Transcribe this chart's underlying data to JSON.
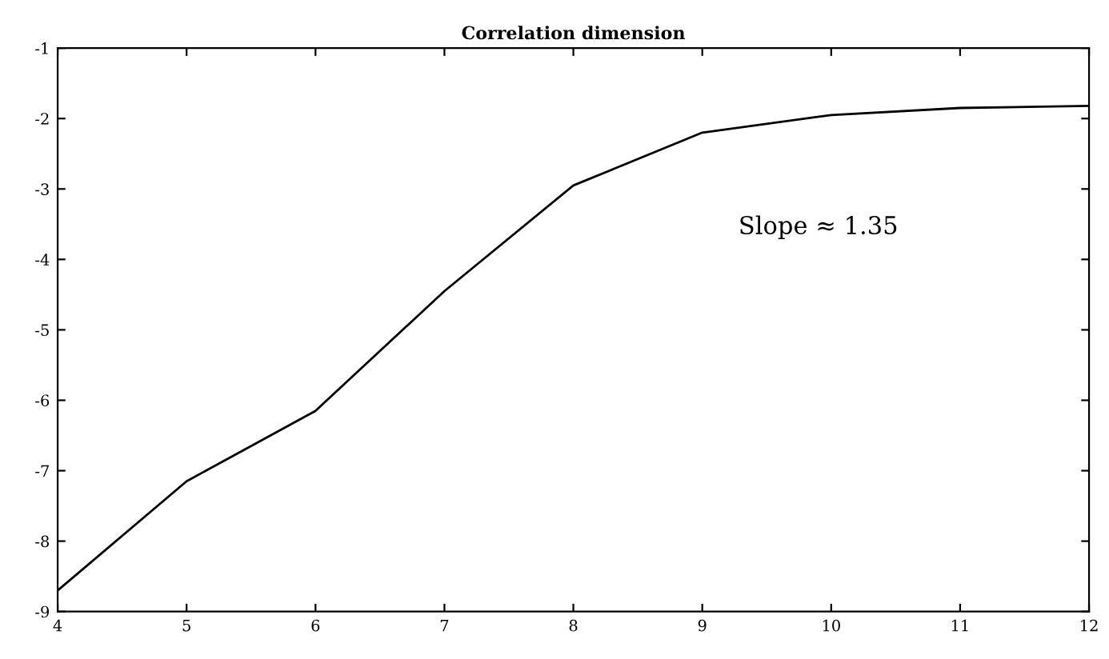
{
  "chart_data": {
    "type": "line",
    "title": "Correlation dimension",
    "x": [
      4,
      5,
      6,
      7,
      8,
      9,
      10,
      11,
      12
    ],
    "values": [
      -8.7,
      -7.15,
      -6.15,
      -4.45,
      -2.95,
      -2.2,
      -1.95,
      -1.85,
      -1.82
    ],
    "color": "#000000",
    "xlim": [
      4,
      12
    ],
    "xticks": [
      4,
      5,
      6,
      7,
      8,
      9,
      10,
      11,
      12
    ],
    "ylim": [
      -9,
      -1
    ],
    "yticks": [
      -9,
      -8,
      -7,
      -6,
      -5,
      -4,
      -3,
      -2,
      -1
    ],
    "annotations": [
      "Slope ≈ 1.35"
    ],
    "grid": false,
    "legend": false
  }
}
